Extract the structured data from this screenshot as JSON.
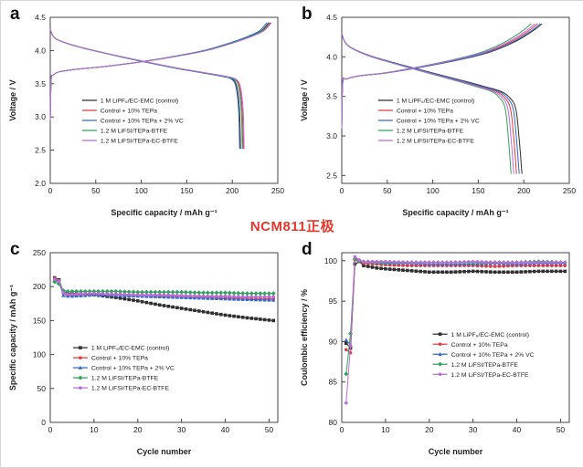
{
  "annotation": {
    "text": "NCM811正极",
    "color": "#e8372c"
  },
  "panels": [
    {
      "letter": "a"
    },
    {
      "letter": "b"
    },
    {
      "letter": "c"
    },
    {
      "letter": "d"
    }
  ],
  "chart_data": [
    {
      "id": "a",
      "type": "line",
      "subtype": "capacity-voltage",
      "xlabel": "Specific capacity / mAh g⁻¹",
      "ylabel": "Voltage / V",
      "xlim": [
        0,
        250
      ],
      "ylim": [
        2.0,
        4.5
      ],
      "xticks": [
        0,
        50,
        100,
        150,
        200,
        250
      ],
      "yticks": [
        2.0,
        2.5,
        3.0,
        3.5,
        4.0,
        4.5
      ],
      "tickdec": 1,
      "grid": false,
      "legend_pos": [
        0.14,
        0.5
      ],
      "profiles": {
        "charge": {
          "frac": [
            0,
            0.004,
            0.013,
            0.042,
            0.125,
            0.25,
            0.417,
            0.583,
            0.708,
            0.833,
            0.917,
            0.967,
            1
          ],
          "v": [
            2.95,
            3.56,
            3.63,
            3.68,
            3.72,
            3.76,
            3.83,
            3.92,
            4.0,
            4.12,
            4.22,
            4.3,
            4.42
          ]
        },
        "discharge": {
          "frac": [
            0,
            0.014,
            0.048,
            0.143,
            0.287,
            0.478,
            0.67,
            0.813,
            0.909,
            0.957,
            0.981,
            0.995,
            1
          ],
          "v": [
            4.32,
            4.22,
            4.15,
            4.06,
            3.96,
            3.84,
            3.73,
            3.66,
            3.61,
            3.57,
            3.45,
            3.1,
            2.52
          ]
        }
      },
      "series": [
        {
          "name": "1 M LiPF₆/EC-EMC (control)",
          "color": "#2e2e2e",
          "q_charge": 240,
          "q_discharge": 209
        },
        {
          "name": "Control + 10% TEPa",
          "color": "#e23b3e",
          "q_charge": 242,
          "q_discharge": 212
        },
        {
          "name": "Control + 10% TEPa + 2% VC",
          "color": "#3466c6",
          "q_charge": 238,
          "q_discharge": 208
        },
        {
          "name": "1.2 M LiFSI/TEPa-BTFE",
          "color": "#2fa35a",
          "q_charge": 241,
          "q_discharge": 211
        },
        {
          "name": "1.2 M LiFSI/TEPa-EC-BTFE",
          "color": "#bb6bd9",
          "q_charge": 243,
          "q_discharge": 213
        }
      ]
    },
    {
      "id": "b",
      "type": "line",
      "subtype": "capacity-voltage",
      "xlabel": "Specific capacity / mAh g⁻¹",
      "ylabel": "Voltage / V",
      "xlim": [
        0,
        250
      ],
      "ylim": [
        2.4,
        4.5
      ],
      "xticks": [
        0,
        50,
        100,
        150,
        200,
        250
      ],
      "yticks": [
        2.5,
        3.0,
        3.5,
        4.0,
        4.5
      ],
      "tickdec": 1,
      "grid": false,
      "legend_pos": [
        0.16,
        0.5
      ],
      "profiles": {
        "charge": {
          "frac": [
            0,
            0.005,
            0.023,
            0.09,
            0.23,
            0.42,
            0.6,
            0.74,
            0.856,
            0.925,
            0.972,
            1
          ],
          "v": [
            3.1,
            3.68,
            3.72,
            3.76,
            3.8,
            3.88,
            3.97,
            4.06,
            4.18,
            4.28,
            4.36,
            4.42
          ]
        },
        "discharge": {
          "frac": [
            0,
            0.015,
            0.05,
            0.15,
            0.3,
            0.5,
            0.67,
            0.8,
            0.875,
            0.925,
            0.965,
            0.985,
            1
          ],
          "v": [
            4.3,
            4.2,
            4.12,
            4.02,
            3.92,
            3.8,
            3.7,
            3.62,
            3.57,
            3.5,
            3.35,
            2.95,
            2.52
          ]
        }
      },
      "series": [
        {
          "name": "1 M LiPF₆/EC-EMC (control)",
          "color": "#2e2e2e",
          "q_charge": 220,
          "q_discharge": 198
        },
        {
          "name": "Control + 10% TEPa",
          "color": "#e23b3e",
          "q_charge": 215,
          "q_discharge": 192
        },
        {
          "name": "Control + 10% TEPa + 2% VC",
          "color": "#3466c6",
          "q_charge": 218,
          "q_discharge": 195
        },
        {
          "name": "1.2 M LiFSI/TEPa-BTFE",
          "color": "#2fa35a",
          "q_charge": 208,
          "q_discharge": 186
        },
        {
          "name": "1.2 M LiFSI/TEPa-EC-BTFE",
          "color": "#bb6bd9",
          "q_charge": 212,
          "q_discharge": 189
        }
      ]
    },
    {
      "id": "c",
      "type": "line",
      "subtype": "cycling",
      "xlabel": "Cycle number",
      "ylabel": "Specific capacity / mAh g⁻¹",
      "xlim": [
        0,
        52
      ],
      "ylim": [
        0,
        250
      ],
      "xticks": [
        0,
        10,
        20,
        30,
        40,
        50
      ],
      "yticks": [
        0,
        50,
        100,
        150,
        200,
        250
      ],
      "grid": false,
      "legend_pos": [
        0.1,
        0.56
      ],
      "series": [
        {
          "name": "1 M LiPF₆/EC-EMC (control)",
          "color": "#2e2e2e",
          "marker": "square",
          "points": [
            [
              1,
              213
            ],
            [
              2,
              210
            ],
            [
              3,
              192
            ],
            [
              4,
              190
            ],
            [
              5,
              190
            ],
            [
              8,
              189
            ],
            [
              10,
              188
            ],
            [
              15,
              184
            ],
            [
              20,
              179
            ],
            [
              25,
              173
            ],
            [
              30,
              168
            ],
            [
              35,
              163
            ],
            [
              40,
              158
            ],
            [
              45,
              154
            ],
            [
              48,
              152
            ],
            [
              51,
              150
            ]
          ]
        },
        {
          "name": "Control + 10% TEPa",
          "color": "#e23b3e",
          "marker": "circle",
          "points": [
            [
              1,
              212
            ],
            [
              2,
              209
            ],
            [
              3,
              190
            ],
            [
              4,
              188
            ],
            [
              5,
              188
            ],
            [
              8,
              189
            ],
            [
              10,
              190
            ],
            [
              15,
              189
            ],
            [
              20,
              188
            ],
            [
              25,
              187
            ],
            [
              30,
              186
            ],
            [
              35,
              185
            ],
            [
              40,
              184
            ],
            [
              45,
              183
            ],
            [
              51,
              182
            ]
          ]
        },
        {
          "name": "Control + 10% TEPa + 2% VC",
          "color": "#3466c6",
          "marker": "triangle",
          "points": [
            [
              1,
              210
            ],
            [
              2,
              207
            ],
            [
              3,
              187
            ],
            [
              4,
              186
            ],
            [
              5,
              186
            ],
            [
              8,
              187
            ],
            [
              10,
              188
            ],
            [
              15,
              187
            ],
            [
              20,
              186
            ],
            [
              25,
              185
            ],
            [
              30,
              184
            ],
            [
              35,
              183
            ],
            [
              40,
              182
            ],
            [
              45,
              181
            ],
            [
              51,
              180
            ]
          ]
        },
        {
          "name": "1.2 M LiFSI/TEPa-BTFE",
          "color": "#2fa35a",
          "marker": "diamond",
          "points": [
            [
              1,
              207
            ],
            [
              2,
              204
            ],
            [
              3,
              194
            ],
            [
              4,
              193
            ],
            [
              5,
              193
            ],
            [
              10,
              193
            ],
            [
              15,
              193
            ],
            [
              20,
              192
            ],
            [
              25,
              192
            ],
            [
              30,
              192
            ],
            [
              35,
              191
            ],
            [
              40,
              191
            ],
            [
              45,
              190
            ],
            [
              51,
              190
            ]
          ]
        },
        {
          "name": "1.2 M LiFSI/TEPa-EC-BTFE",
          "color": "#bb6bd9",
          "marker": "circle",
          "points": [
            [
              1,
              211
            ],
            [
              2,
              208
            ],
            [
              3,
              191
            ],
            [
              4,
              189
            ],
            [
              5,
              189
            ],
            [
              10,
              190
            ],
            [
              15,
              189
            ],
            [
              20,
              188
            ],
            [
              25,
              188
            ],
            [
              30,
              187
            ],
            [
              35,
              186
            ],
            [
              40,
              186
            ],
            [
              45,
              185
            ],
            [
              51,
              185
            ]
          ]
        }
      ]
    },
    {
      "id": "d",
      "type": "line",
      "subtype": "cycling",
      "xlabel": "Cycle number",
      "ylabel": "Coulombic efficiency / %",
      "xlim": [
        0,
        52
      ],
      "ylim": [
        80,
        101
      ],
      "xticks": [
        0,
        10,
        20,
        30,
        40,
        50
      ],
      "yticks": [
        80,
        85,
        90,
        95,
        100
      ],
      "grid": false,
      "legend_pos": [
        0.4,
        0.48
      ],
      "series": [
        {
          "name": "1 M LiPF₆/EC-EMC (control)",
          "color": "#2e2e2e",
          "marker": "square",
          "points": [
            [
              1,
              89.8
            ],
            [
              2,
              89.2
            ],
            [
              3,
              99.6
            ],
            [
              4,
              99.9
            ],
            [
              5,
              99.4
            ],
            [
              8,
              99.1
            ],
            [
              10,
              99.0
            ],
            [
              15,
              98.8
            ],
            [
              20,
              98.6
            ],
            [
              25,
              98.6
            ],
            [
              30,
              98.7
            ],
            [
              35,
              98.6
            ],
            [
              40,
              98.6
            ],
            [
              45,
              98.7
            ],
            [
              51,
              98.7
            ]
          ]
        },
        {
          "name": "Control + 10% TEPa",
          "color": "#e23b3e",
          "marker": "circle",
          "points": [
            [
              1,
              89.0
            ],
            [
              2,
              88.6
            ],
            [
              3,
              100.1
            ],
            [
              4,
              99.9
            ],
            [
              5,
              99.7
            ],
            [
              10,
              99.5
            ],
            [
              15,
              99.4
            ],
            [
              20,
              99.4
            ],
            [
              25,
              99.4
            ],
            [
              30,
              99.4
            ],
            [
              35,
              99.3
            ],
            [
              40,
              99.4
            ],
            [
              45,
              99.4
            ],
            [
              51,
              99.4
            ]
          ]
        },
        {
          "name": "Control + 10% TEPa + 2% VC",
          "color": "#3466c6",
          "marker": "triangle",
          "points": [
            [
              1,
              90.2
            ],
            [
              2,
              89.6
            ],
            [
              3,
              100.4
            ],
            [
              4,
              100.0
            ],
            [
              5,
              99.9
            ],
            [
              10,
              99.7
            ],
            [
              15,
              99.7
            ],
            [
              20,
              99.6
            ],
            [
              25,
              99.6
            ],
            [
              30,
              99.6
            ],
            [
              35,
              99.7
            ],
            [
              40,
              99.6
            ],
            [
              45,
              99.7
            ],
            [
              51,
              99.7
            ]
          ]
        },
        {
          "name": "1.2 M LiFSI/TEPa-BTFE",
          "color": "#2fa35a",
          "marker": "diamond",
          "points": [
            [
              1,
              86.0
            ],
            [
              2,
              91.0
            ],
            [
              3,
              100.2
            ],
            [
              4,
              100.0
            ],
            [
              5,
              99.9
            ],
            [
              10,
              99.8
            ],
            [
              15,
              99.8
            ],
            [
              20,
              99.8
            ],
            [
              25,
              99.8
            ],
            [
              30,
              99.8
            ],
            [
              35,
              99.8
            ],
            [
              40,
              99.8
            ],
            [
              45,
              99.9
            ],
            [
              51,
              99.8
            ]
          ]
        },
        {
          "name": "1.2 M LiFSI/TEPa-EC-BTFE",
          "color": "#bb6bd9",
          "marker": "circle",
          "points": [
            [
              1,
              82.4
            ],
            [
              2,
              89.5
            ],
            [
              3,
              100.5
            ],
            [
              4,
              100.1
            ],
            [
              5,
              99.9
            ],
            [
              10,
              99.9
            ],
            [
              15,
              99.8
            ],
            [
              20,
              99.8
            ],
            [
              25,
              99.8
            ],
            [
              30,
              99.9
            ],
            [
              35,
              99.8
            ],
            [
              40,
              99.8
            ],
            [
              45,
              99.8
            ],
            [
              51,
              99.8
            ]
          ]
        }
      ]
    }
  ]
}
